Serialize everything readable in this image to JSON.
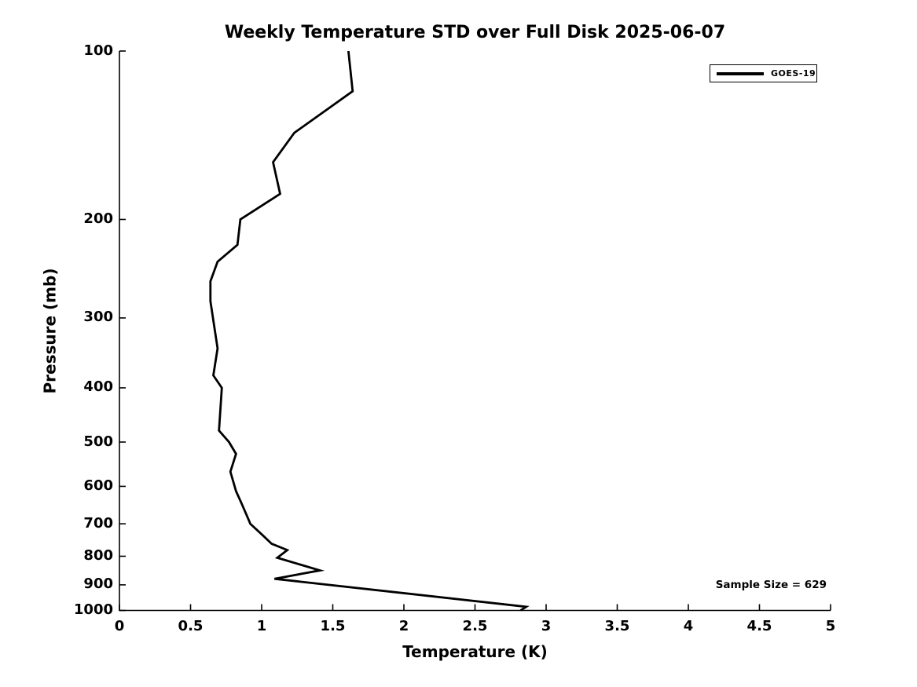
{
  "chart_data": {
    "type": "line",
    "title": "Weekly Temperature STD over Full Disk 2025-06-07",
    "xlabel": "Temperature (K)",
    "ylabel": "Pressure (mb)",
    "xlim": [
      0,
      5
    ],
    "ylim": [
      100,
      1000
    ],
    "y_scale": "log",
    "y_inverted": true,
    "grid": false,
    "x_ticks": [
      "0",
      "0.5",
      "1",
      "1.5",
      "2",
      "2.5",
      "3",
      "3.5",
      "4",
      "4.5",
      "5"
    ],
    "y_ticks": [
      "100",
      "200",
      "300",
      "400",
      "500",
      "600",
      "700",
      "800",
      "900",
      "1000"
    ],
    "legend": {
      "position": "upper-right",
      "entries": [
        {
          "label": "GOES-19",
          "color": "#000000",
          "style": "solid-line"
        }
      ]
    },
    "annotation": "Sample Size = 629",
    "series": [
      {
        "name": "GOES-19",
        "color": "#000000",
        "line_width": 2.8,
        "points": [
          {
            "pressure_mb": 100,
            "temp_std_K": 1.61
          },
          {
            "pressure_mb": 118,
            "temp_std_K": 1.64
          },
          {
            "pressure_mb": 140,
            "temp_std_K": 1.23
          },
          {
            "pressure_mb": 158,
            "temp_std_K": 1.08
          },
          {
            "pressure_mb": 180,
            "temp_std_K": 1.13
          },
          {
            "pressure_mb": 200,
            "temp_std_K": 0.85
          },
          {
            "pressure_mb": 222,
            "temp_std_K": 0.83
          },
          {
            "pressure_mb": 238,
            "temp_std_K": 0.69
          },
          {
            "pressure_mb": 258,
            "temp_std_K": 0.64
          },
          {
            "pressure_mb": 280,
            "temp_std_K": 0.64
          },
          {
            "pressure_mb": 315,
            "temp_std_K": 0.67
          },
          {
            "pressure_mb": 340,
            "temp_std_K": 0.69
          },
          {
            "pressure_mb": 380,
            "temp_std_K": 0.66
          },
          {
            "pressure_mb": 400,
            "temp_std_K": 0.72
          },
          {
            "pressure_mb": 477,
            "temp_std_K": 0.7
          },
          {
            "pressure_mb": 500,
            "temp_std_K": 0.77
          },
          {
            "pressure_mb": 525,
            "temp_std_K": 0.82
          },
          {
            "pressure_mb": 565,
            "temp_std_K": 0.78
          },
          {
            "pressure_mb": 612,
            "temp_std_K": 0.82
          },
          {
            "pressure_mb": 645,
            "temp_std_K": 0.86
          },
          {
            "pressure_mb": 690,
            "temp_std_K": 0.91
          },
          {
            "pressure_mb": 700,
            "temp_std_K": 0.92
          },
          {
            "pressure_mb": 735,
            "temp_std_K": 1.01
          },
          {
            "pressure_mb": 760,
            "temp_std_K": 1.07
          },
          {
            "pressure_mb": 780,
            "temp_std_K": 1.18
          },
          {
            "pressure_mb": 805,
            "temp_std_K": 1.11
          },
          {
            "pressure_mb": 848,
            "temp_std_K": 1.41
          },
          {
            "pressure_mb": 878,
            "temp_std_K": 1.09
          },
          {
            "pressure_mb": 985,
            "temp_std_K": 2.86
          },
          {
            "pressure_mb": 1000,
            "temp_std_K": 2.82
          }
        ]
      }
    ],
    "colors": {
      "line": "#000000",
      "axis": "#000000",
      "background": "#ffffff"
    }
  }
}
